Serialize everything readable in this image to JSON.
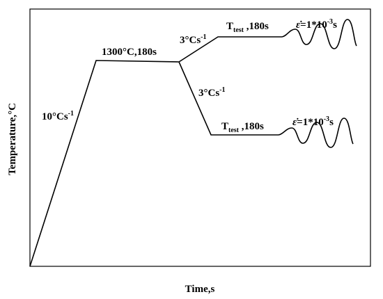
{
  "axes": {
    "x_label": "Time,s",
    "y_label": "Temperature,°C"
  },
  "annotations": {
    "heating_rate": {
      "text": "10°Cs",
      "sup": "-1"
    },
    "hold": "1300°C,180s",
    "cooling_upper": {
      "text": "3°Cs",
      "sup": "-1"
    },
    "cooling_lower": {
      "text": "3°Cs",
      "sup": "-1"
    },
    "test_upper": {
      "base": "T",
      "sub": "test",
      "text": " ,180s"
    },
    "test_lower": {
      "base": "T",
      "sub": "test",
      "text": " ,180s"
    },
    "strain_upper": {
      "symbol": "ε̇",
      "text": "=1*10",
      "sup": "-3",
      "unit": "s"
    },
    "strain_lower": {
      "symbol": "ε̇",
      "text": "=1*10",
      "sup": "-3",
      "unit": "s"
    }
  }
}
